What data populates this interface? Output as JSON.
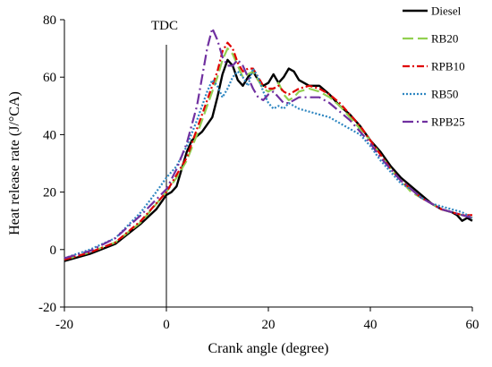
{
  "chart_data": {
    "type": "line",
    "title": "",
    "xlabel": "Crank angle (degree)",
    "ylabel": "Heat release rate (J/°CA)",
    "xlim": [
      -20,
      60
    ],
    "ylim": [
      -20,
      80
    ],
    "xticks": [
      -20,
      0,
      20,
      40,
      60
    ],
    "yticks": [
      -20,
      0,
      20,
      40,
      60,
      80
    ],
    "grid": false,
    "legend_position": "right",
    "annotations": [
      {
        "text": "TDC",
        "x": 0
      }
    ],
    "series": [
      {
        "name": "Diesel",
        "color": "#000000",
        "dash": "solid",
        "points": [
          [
            -20,
            -4
          ],
          [
            -15,
            -1.5
          ],
          [
            -10,
            2
          ],
          [
            -5,
            9
          ],
          [
            -2,
            14
          ],
          [
            0,
            19
          ],
          [
            1,
            20
          ],
          [
            2,
            22
          ],
          [
            3,
            28
          ],
          [
            4,
            34
          ],
          [
            5,
            38
          ],
          [
            7,
            41
          ],
          [
            9,
            46
          ],
          [
            10,
            53
          ],
          [
            11,
            61
          ],
          [
            12,
            66
          ],
          [
            13,
            64
          ],
          [
            14,
            59
          ],
          [
            15,
            57
          ],
          [
            16,
            60
          ],
          [
            17,
            62
          ],
          [
            18,
            59
          ],
          [
            19,
            57
          ],
          [
            20,
            58
          ],
          [
            21,
            61
          ],
          [
            22,
            58
          ],
          [
            23,
            60
          ],
          [
            24,
            63
          ],
          [
            25,
            62
          ],
          [
            26,
            59
          ],
          [
            28,
            57
          ],
          [
            30,
            57
          ],
          [
            32,
            54
          ],
          [
            34,
            50
          ],
          [
            36,
            47
          ],
          [
            38,
            43
          ],
          [
            40,
            38
          ],
          [
            42,
            34
          ],
          [
            44,
            29
          ],
          [
            46,
            25
          ],
          [
            48,
            22
          ],
          [
            50,
            19
          ],
          [
            52,
            16
          ],
          [
            54,
            14
          ],
          [
            56,
            13
          ],
          [
            57,
            12
          ],
          [
            58,
            10
          ],
          [
            59,
            11
          ],
          [
            60,
            10
          ]
        ]
      },
      {
        "name": "RB20",
        "color": "#92D050",
        "dash": "long-dash",
        "points": [
          [
            -20,
            -3.5
          ],
          [
            -15,
            -1
          ],
          [
            -10,
            2.5
          ],
          [
            -5,
            9.5
          ],
          [
            0,
            20
          ],
          [
            2,
            25
          ],
          [
            4,
            31
          ],
          [
            6,
            40
          ],
          [
            8,
            50
          ],
          [
            10,
            60
          ],
          [
            11,
            66
          ],
          [
            12,
            70
          ],
          [
            13,
            68
          ],
          [
            14,
            64
          ],
          [
            15,
            60
          ],
          [
            16,
            61
          ],
          [
            17,
            62
          ],
          [
            18,
            59
          ],
          [
            19,
            56
          ],
          [
            20,
            55
          ],
          [
            21,
            56
          ],
          [
            22,
            58
          ],
          [
            23,
            54
          ],
          [
            24,
            52
          ],
          [
            25,
            53
          ],
          [
            26,
            55
          ],
          [
            28,
            56
          ],
          [
            30,
            55
          ],
          [
            32,
            53
          ],
          [
            34,
            50
          ],
          [
            36,
            46
          ],
          [
            38,
            42
          ],
          [
            40,
            38
          ],
          [
            42,
            33
          ],
          [
            44,
            28
          ],
          [
            46,
            24
          ],
          [
            48,
            20
          ],
          [
            50,
            18
          ],
          [
            52,
            16
          ],
          [
            54,
            14
          ],
          [
            56,
            13
          ],
          [
            58,
            12
          ],
          [
            60,
            11
          ]
        ]
      },
      {
        "name": "RPB10",
        "color": "#E00000",
        "dash": "dash-dot",
        "points": [
          [
            -20,
            -3.5
          ],
          [
            -15,
            -1
          ],
          [
            -10,
            2.5
          ],
          [
            -5,
            10
          ],
          [
            0,
            20
          ],
          [
            2,
            26
          ],
          [
            4,
            32
          ],
          [
            6,
            42
          ],
          [
            8,
            52
          ],
          [
            10,
            62
          ],
          [
            11,
            69
          ],
          [
            12,
            72
          ],
          [
            13,
            70
          ],
          [
            14,
            65
          ],
          [
            15,
            62
          ],
          [
            16,
            63
          ],
          [
            17,
            63
          ],
          [
            18,
            60
          ],
          [
            19,
            57
          ],
          [
            20,
            56
          ],
          [
            21,
            56
          ],
          [
            22,
            57
          ],
          [
            23,
            55
          ],
          [
            24,
            54
          ],
          [
            25,
            55
          ],
          [
            26,
            56
          ],
          [
            28,
            57
          ],
          [
            30,
            56
          ],
          [
            32,
            54
          ],
          [
            34,
            51
          ],
          [
            36,
            47
          ],
          [
            38,
            43
          ],
          [
            40,
            38
          ],
          [
            42,
            33
          ],
          [
            44,
            28
          ],
          [
            46,
            24
          ],
          [
            48,
            21
          ],
          [
            50,
            18
          ],
          [
            52,
            16
          ],
          [
            54,
            14
          ],
          [
            56,
            13
          ],
          [
            58,
            12
          ],
          [
            60,
            12
          ]
        ]
      },
      {
        "name": "RB50",
        "color": "#2E86C1",
        "dash": "dotted",
        "points": [
          [
            -20,
            -3
          ],
          [
            -15,
            0
          ],
          [
            -10,
            4
          ],
          [
            -5,
            13
          ],
          [
            -2,
            20
          ],
          [
            0,
            25
          ],
          [
            2,
            29
          ],
          [
            4,
            36
          ],
          [
            6,
            45
          ],
          [
            8,
            55
          ],
          [
            9,
            59
          ],
          [
            10,
            57
          ],
          [
            11,
            53
          ],
          [
            12,
            56
          ],
          [
            13,
            60
          ],
          [
            14,
            62
          ],
          [
            15,
            60
          ],
          [
            16,
            57
          ],
          [
            17,
            63
          ],
          [
            18,
            60
          ],
          [
            19,
            55
          ],
          [
            20,
            51
          ],
          [
            21,
            49
          ],
          [
            22,
            50
          ],
          [
            23,
            49
          ],
          [
            24,
            51
          ],
          [
            25,
            50
          ],
          [
            26,
            49
          ],
          [
            28,
            48
          ],
          [
            30,
            47
          ],
          [
            32,
            46
          ],
          [
            34,
            44
          ],
          [
            36,
            42
          ],
          [
            38,
            40
          ],
          [
            40,
            36
          ],
          [
            42,
            31
          ],
          [
            44,
            27
          ],
          [
            46,
            23
          ],
          [
            48,
            21
          ],
          [
            50,
            18
          ],
          [
            52,
            16
          ],
          [
            54,
            15
          ],
          [
            56,
            14
          ],
          [
            58,
            13
          ],
          [
            60,
            11
          ]
        ]
      },
      {
        "name": "RPB25",
        "color": "#7030A0",
        "dash": "long-dash-dot",
        "points": [
          [
            -20,
            -3
          ],
          [
            -15,
            -0.5
          ],
          [
            -10,
            4
          ],
          [
            -5,
            12
          ],
          [
            0,
            21
          ],
          [
            2,
            28
          ],
          [
            4,
            37
          ],
          [
            6,
            50
          ],
          [
            7,
            60
          ],
          [
            8,
            70
          ],
          [
            9,
            77
          ],
          [
            10,
            73
          ],
          [
            11,
            67
          ],
          [
            12,
            64
          ],
          [
            13,
            64
          ],
          [
            14,
            66
          ],
          [
            15,
            64
          ],
          [
            16,
            60
          ],
          [
            17,
            56
          ],
          [
            18,
            53
          ],
          [
            19,
            52
          ],
          [
            20,
            54
          ],
          [
            21,
            55
          ],
          [
            22,
            53
          ],
          [
            23,
            51
          ],
          [
            24,
            51
          ],
          [
            25,
            52
          ],
          [
            26,
            53
          ],
          [
            28,
            53
          ],
          [
            30,
            53
          ],
          [
            32,
            51
          ],
          [
            34,
            48
          ],
          [
            36,
            45
          ],
          [
            38,
            41
          ],
          [
            40,
            37
          ],
          [
            42,
            32
          ],
          [
            44,
            28
          ],
          [
            46,
            24
          ],
          [
            48,
            21
          ],
          [
            50,
            18
          ],
          [
            52,
            16
          ],
          [
            54,
            14
          ],
          [
            56,
            13
          ],
          [
            58,
            12
          ],
          [
            60,
            11
          ]
        ]
      }
    ]
  }
}
